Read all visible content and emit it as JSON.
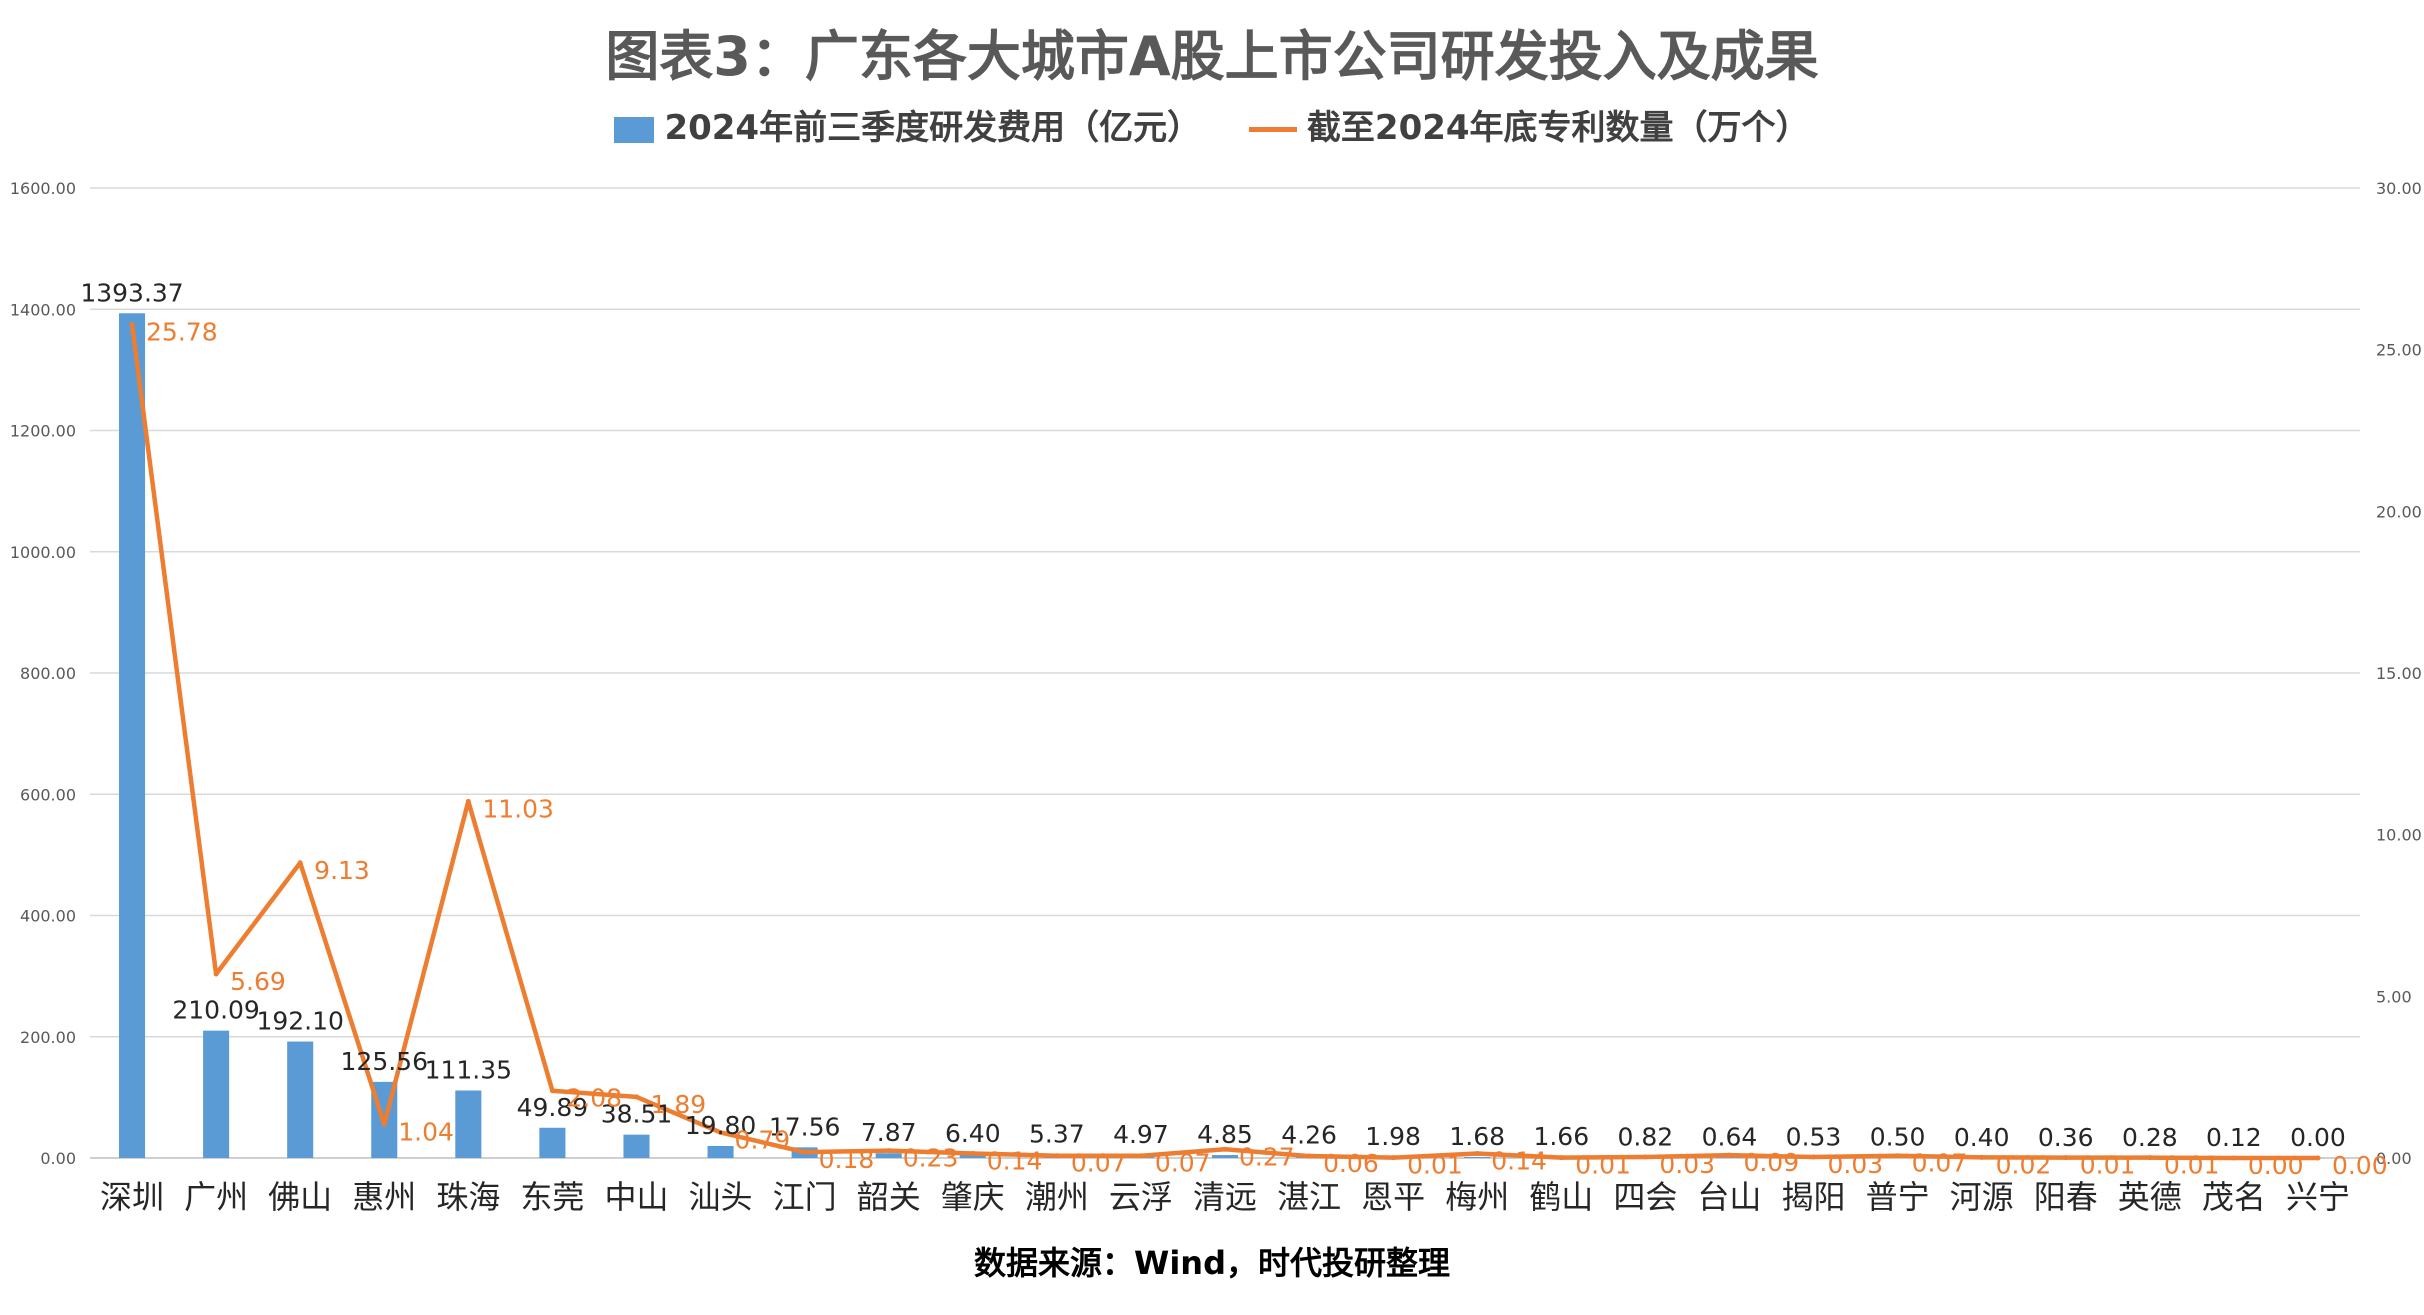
{
  "chart_data": {
    "type": "bar",
    "title": "图表3：广东各大城市A股上市公司研发投入及成果",
    "source": "数据来源：Wind，时代投研整理",
    "categories": [
      "深圳",
      "广州",
      "佛山",
      "惠州",
      "珠海",
      "东莞",
      "中山",
      "汕头",
      "江门",
      "韶关",
      "肇庆",
      "潮州",
      "云浮",
      "清远",
      "湛江",
      "恩平",
      "梅州",
      "鹤山",
      "四会",
      "台山",
      "揭阳",
      "普宁",
      "河源",
      "阳春",
      "英德",
      "茂名",
      "兴宁"
    ],
    "series": [
      {
        "name": "2024年前三季度研发费用（亿元）",
        "type": "bar",
        "axis": "left",
        "color": "#5b9bd5",
        "values": [
          1393.37,
          210.09,
          192.1,
          125.56,
          111.35,
          49.89,
          38.51,
          19.8,
          17.56,
          7.87,
          6.4,
          5.37,
          4.97,
          4.85,
          4.26,
          1.98,
          1.68,
          1.66,
          0.82,
          0.64,
          0.53,
          0.5,
          0.4,
          0.36,
          0.28,
          0.12,
          0.0
        ],
        "labels": [
          "1393.37",
          "210.09",
          "192.10",
          "125.56",
          "111.35",
          "49.89",
          "38.51",
          "19.80",
          "17.56",
          "7.87",
          "6.40",
          "5.37",
          "4.97",
          "4.85",
          "4.26",
          "1.98",
          "1.68",
          "1.66",
          "0.82",
          "0.64",
          "0.53",
          "0.50",
          "0.40",
          "0.36",
          "0.28",
          "0.12",
          "0.00"
        ]
      },
      {
        "name": "截至2024年底专利数量（万个）",
        "type": "line",
        "axis": "right",
        "color": "#ed7d31",
        "values": [
          25.78,
          5.69,
          9.13,
          1.04,
          11.03,
          2.08,
          1.89,
          0.79,
          0.18,
          0.23,
          0.14,
          0.07,
          0.07,
          0.27,
          0.06,
          0.01,
          0.14,
          0.01,
          0.03,
          0.09,
          0.03,
          0.07,
          0.02,
          0.01,
          0.01,
          0.0,
          0.0
        ],
        "labels": [
          "25.78",
          "5.69",
          "9.13",
          "1.04",
          "11.03",
          "2.08",
          "1.89",
          "0.79",
          "0.18",
          "0.23",
          "0.14",
          "0.07",
          "0.07",
          "0.27",
          "0.06",
          "0.01",
          "0.14",
          "0.01",
          "0.03",
          "0.09",
          "0.03",
          "0.07",
          "0.02",
          "0.01",
          "0.01",
          "0.00",
          "0.00"
        ]
      }
    ],
    "y_left": {
      "ylim": [
        0,
        1600
      ],
      "ticks": [
        "0.00",
        "200.00",
        "400.00",
        "600.00",
        "800.00",
        "1000.00",
        "1200.00",
        "1400.00",
        "1600.00"
      ]
    },
    "y_right": {
      "ylim": [
        0,
        30
      ],
      "ticks": [
        "0.00",
        "5.00",
        "10.00",
        "15.00",
        "20.00",
        "25.00",
        "30.00"
      ]
    },
    "grid": true,
    "legend_position": "top"
  }
}
